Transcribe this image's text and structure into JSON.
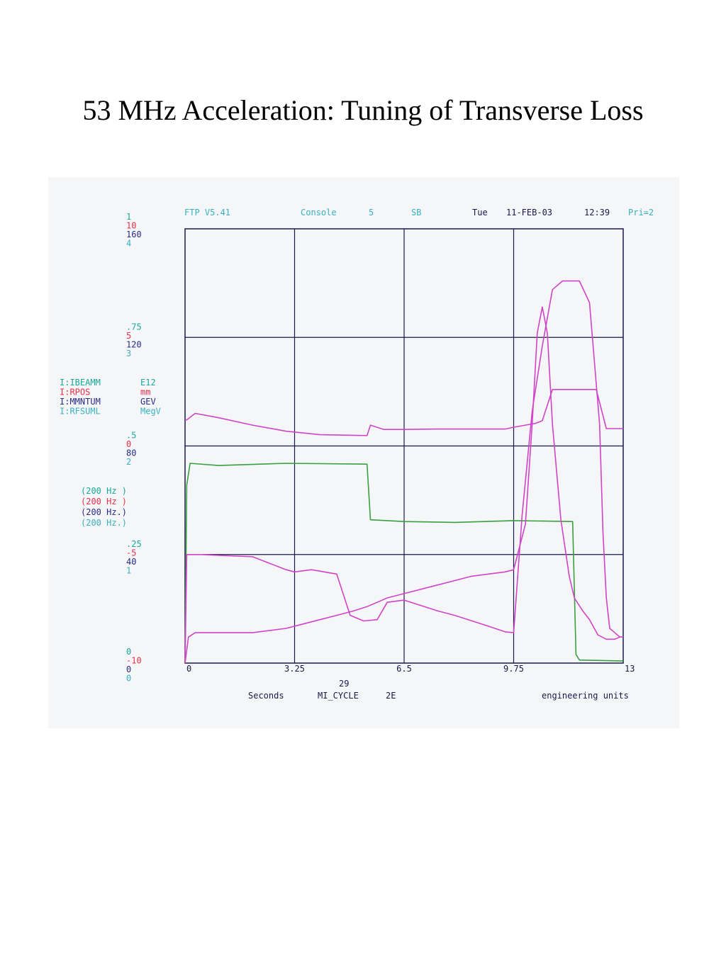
{
  "title": "53 MHz Acceleration: Tuning of Transverse Loss",
  "header": {
    "version": "FTP V5.41",
    "console": "Console",
    "console_num": "5",
    "sb": "SB",
    "day": "Tue",
    "date": "11-FEB-03",
    "time": "12:39",
    "pri": "Pri=2"
  },
  "colors": {
    "green": "#1aa89a",
    "red": "#e8304a",
    "blue": "#2a2a8a",
    "cyan": "#3ab0c0",
    "magenta": "#d044c8",
    "trace_green": "#3aa040",
    "grid": "#1a1a4a"
  },
  "y_scales": [
    {
      "labels": [
        "1",
        "10",
        "160",
        "4"
      ]
    },
    {
      "labels": [
        ".75",
        "5",
        "120",
        "3"
      ]
    },
    {
      "labels": [
        ".5",
        "0",
        "80",
        "2"
      ]
    },
    {
      "labels": [
        ".25",
        "-5",
        "40",
        "1"
      ]
    },
    {
      "labels": [
        "0",
        "-10",
        "0",
        "0"
      ]
    }
  ],
  "channels": [
    {
      "name": "I:IBEAMM",
      "unit": "E12",
      "rate": "(200  Hz )"
    },
    {
      "name": "I:RPOS",
      "unit": "mm",
      "rate": "(200  Hz )"
    },
    {
      "name": "I:MMNTUM",
      "unit": "GEV",
      "rate": "(200  Hz.)"
    },
    {
      "name": "I:RFSUML",
      "unit": "MegV",
      "rate": "(200  Hz.)"
    }
  ],
  "footer": {
    "cycle_num": "29",
    "seconds": "Seconds",
    "cycle": "MI_CYCLE",
    "cycle_code": "2E",
    "units": "engineering units"
  },
  "chart_data": {
    "type": "line",
    "x_ticks": [
      "0",
      "3.25",
      "6.5",
      "9.75",
      "13"
    ],
    "xlim": [
      0,
      13
    ],
    "ylim": [
      0,
      1
    ],
    "grid": true,
    "series": [
      {
        "name": "I:IBEAMM",
        "color": "magenta",
        "x": [
          0,
          0.05,
          0.3,
          1.0,
          2.0,
          3.0,
          4.0,
          5.4,
          5.5,
          5.9,
          6.5,
          7.5,
          8.5,
          9.5,
          9.75,
          10.1,
          10.4,
          10.6,
          10.9,
          11.5,
          12.2,
          12.5,
          12.9,
          13.0
        ],
        "y": [
          0.56,
          0.56,
          0.575,
          0.565,
          0.548,
          0.534,
          0.526,
          0.524,
          0.548,
          0.538,
          0.538,
          0.539,
          0.539,
          0.539,
          0.543,
          0.548,
          0.552,
          0.558,
          0.63,
          0.63,
          0.63,
          0.54,
          0.54,
          0.54
        ]
      },
      {
        "name": "I:RFSUML",
        "color": "trace_green",
        "x": [
          0,
          0.05,
          0.15,
          1.0,
          3.0,
          5.4,
          5.5,
          6.5,
          8.0,
          9.75,
          11.5,
          11.6,
          11.7,
          12.9,
          13.0
        ],
        "y": [
          0.0,
          0.41,
          0.46,
          0.455,
          0.46,
          0.458,
          0.33,
          0.326,
          0.324,
          0.328,
          0.326,
          0.02,
          0.007,
          0.005,
          0.005
        ]
      },
      {
        "name": "I:MMNTUM",
        "color": "magenta",
        "x": [
          0,
          0.1,
          0.3,
          1.0,
          2.0,
          3.0,
          3.5,
          4.0,
          4.5,
          5.0,
          5.4,
          5.7,
          6.0,
          6.5,
          7.5,
          8.5,
          9.0,
          9.5,
          9.75,
          10.1,
          10.3,
          10.45,
          10.6,
          10.75,
          10.9,
          11.15,
          11.4,
          11.55,
          11.8,
          12.0,
          12.25,
          12.5,
          12.75,
          12.9,
          13.0
        ],
        "y": [
          0.0,
          0.06,
          0.07,
          0.07,
          0.07,
          0.08,
          0.09,
          0.1,
          0.11,
          0.12,
          0.13,
          0.14,
          0.15,
          0.16,
          0.18,
          0.2,
          0.205,
          0.21,
          0.215,
          0.32,
          0.55,
          0.76,
          0.82,
          0.76,
          0.55,
          0.33,
          0.2,
          0.15,
          0.12,
          0.1,
          0.065,
          0.055,
          0.055,
          0.06,
          0.06
        ]
      },
      {
        "name": "I:RPOS",
        "color": "magenta",
        "x": [
          0,
          0.05,
          0.5,
          1.0,
          2.0,
          3.0,
          3.25,
          3.75,
          4.5,
          4.9,
          5.3,
          5.7,
          6.0,
          6.5,
          7.5,
          8.0,
          9.0,
          9.5,
          9.75,
          10.0,
          10.3,
          10.6,
          10.9,
          11.2,
          11.4,
          11.7,
          12.0,
          12.3,
          12.4,
          12.5,
          12.6,
          12.9,
          13.0
        ],
        "y": [
          0.0,
          0.25,
          0.25,
          0.248,
          0.245,
          0.215,
          0.21,
          0.215,
          0.205,
          0.11,
          0.097,
          0.1,
          0.14,
          0.145,
          0.12,
          0.11,
          0.085,
          0.072,
          0.07,
          0.34,
          0.58,
          0.73,
          0.86,
          0.88,
          0.88,
          0.88,
          0.83,
          0.55,
          0.3,
          0.15,
          0.08,
          0.06,
          0.06
        ]
      }
    ]
  }
}
